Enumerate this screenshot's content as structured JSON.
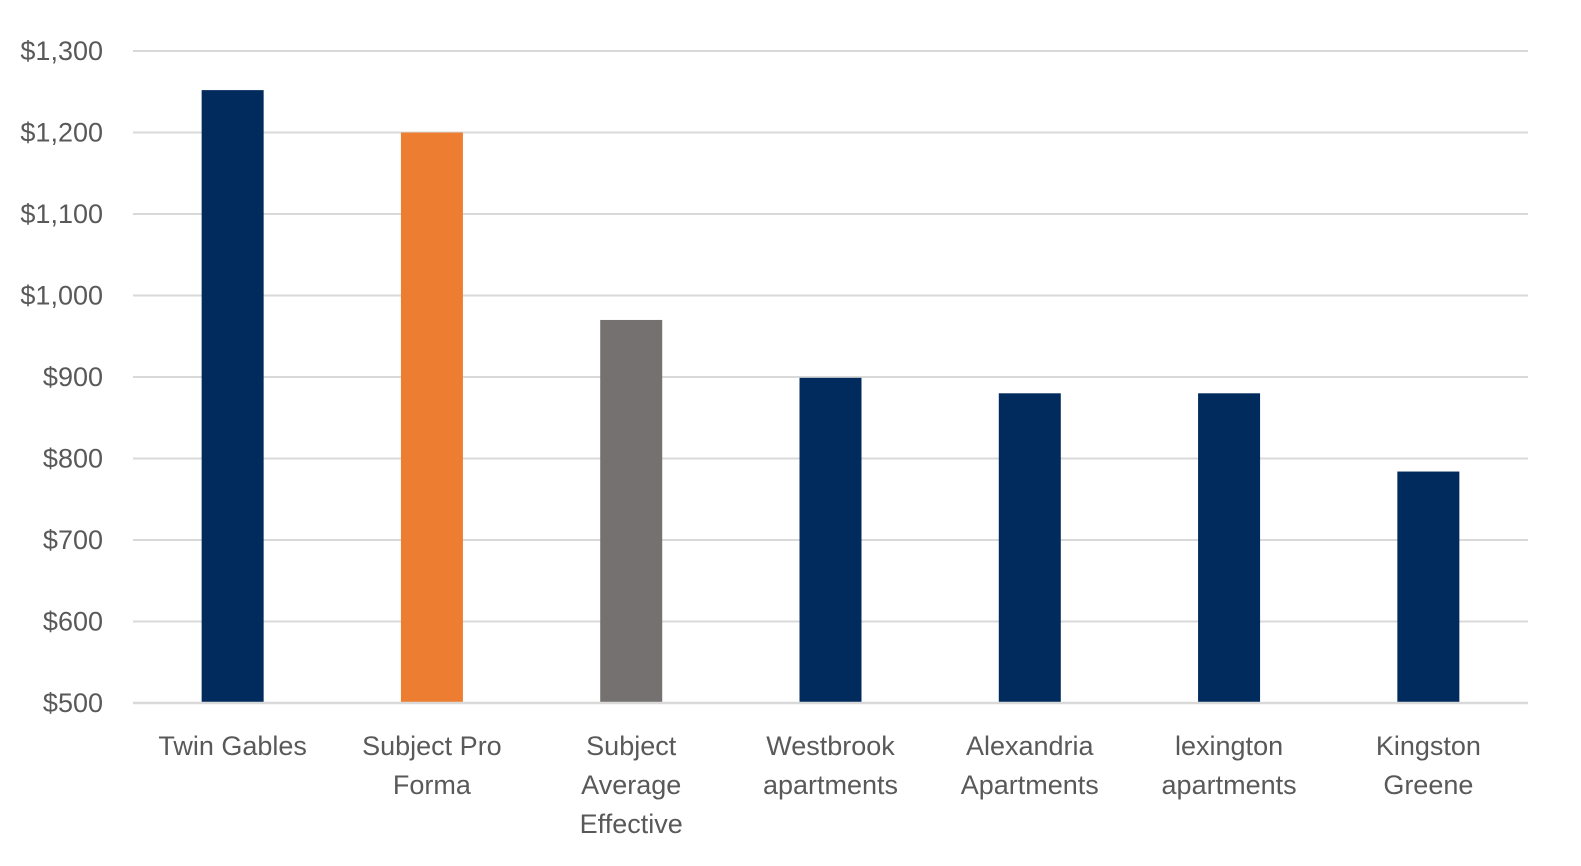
{
  "chart_data": {
    "type": "bar",
    "title": "",
    "xlabel": "",
    "ylabel": "",
    "ylim": [
      500,
      1300
    ],
    "ytick_step": 100,
    "ytick_prefix": "$",
    "grid": true,
    "legend": "none",
    "categories": [
      "Twin Gables",
      "Subject Pro Forma",
      "Subject Average Effective",
      "Westbrook apartments",
      "Alexandria Apartments",
      "lexington apartments",
      "Kingston Greene"
    ],
    "category_lines": [
      [
        "Twin Gables"
      ],
      [
        "Subject Pro",
        "Forma"
      ],
      [
        "Subject",
        "Average",
        "Effective"
      ],
      [
        "Westbrook",
        "apartments"
      ],
      [
        "Alexandria",
        "Apartments"
      ],
      [
        "lexington",
        "apartments"
      ],
      [
        "Kingston",
        "Greene"
      ]
    ],
    "values": [
      1252,
      1200,
      970,
      899,
      880,
      880,
      784
    ],
    "bar_colors": [
      "#002b5c",
      "#ed7d31",
      "#767171",
      "#002b5c",
      "#002b5c",
      "#002b5c",
      "#002b5c"
    ]
  }
}
